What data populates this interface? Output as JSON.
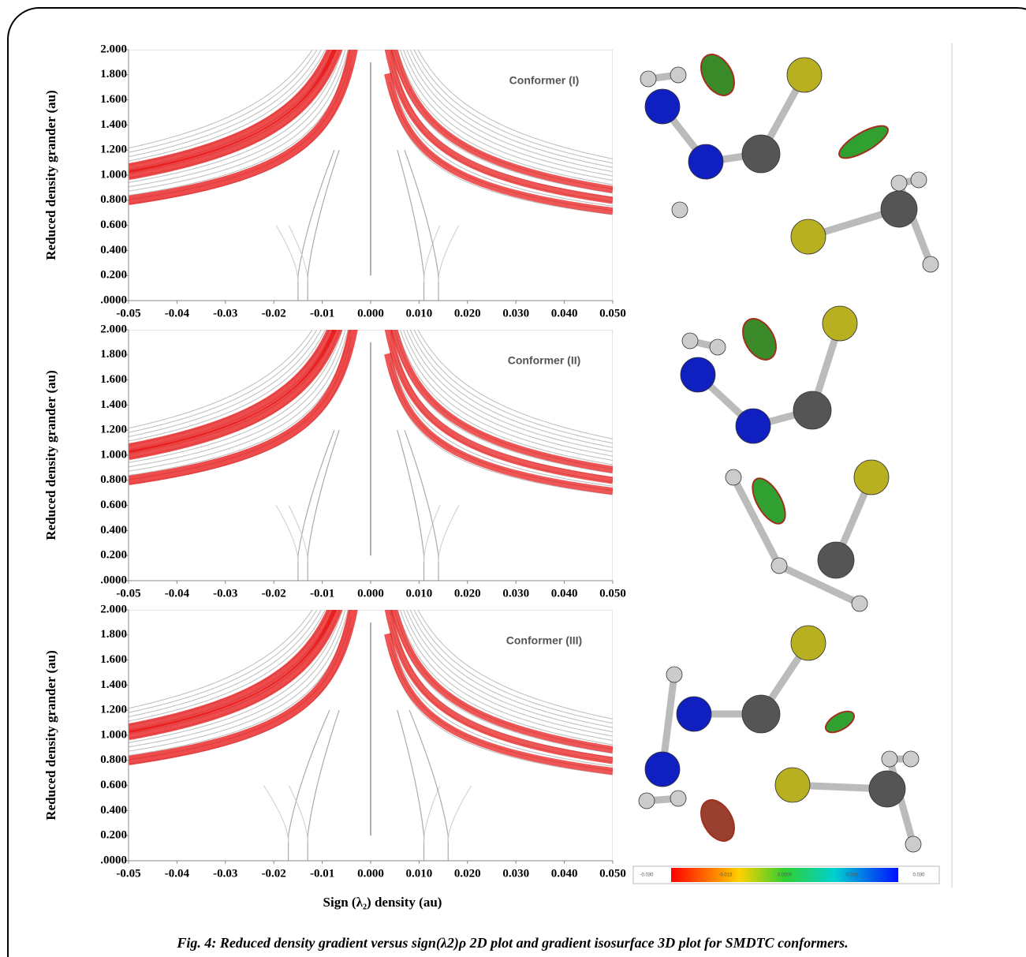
{
  "figure": {
    "panels": [
      {
        "title": "Conformer (I)",
        "ylabel": "Reduced density grander (au)",
        "xlim": [
          -0.05,
          0.05
        ],
        "ylim": [
          0,
          2
        ],
        "xticks": [
          -0.05,
          -0.04,
          -0.03,
          -0.02,
          -0.01,
          {
            "value": 0,
            "label": "0.000"
          },
          {
            "value": 0.01,
            "label": "0.010"
          },
          {
            "value": 0.02,
            "label": "0.020"
          },
          {
            "value": 0.03,
            "label": "0.030"
          },
          {
            "value": 0.04,
            "label": "0.040"
          },
          {
            "value": 0.05,
            "label": "0.050"
          }
        ],
        "yticks": [
          {
            "value": 0,
            "label": ".0000"
          },
          {
            "value": 0.2,
            "label": "0.200"
          },
          {
            "value": 0.4,
            "label": "0.400"
          },
          {
            "value": 0.6,
            "label": "0.600"
          },
          {
            "value": 0.8,
            "label": "0.800"
          },
          {
            "value": 1,
            "label": "1.000"
          },
          {
            "value": 1.2,
            "label": "1.200"
          },
          {
            "value": 1.4,
            "label": "1.400"
          },
          {
            "value": 1.6,
            "label": "1.600"
          },
          {
            "value": 1.8,
            "label": "1.800"
          },
          {
            "value": 2,
            "label": "2.000"
          }
        ]
      },
      {
        "title": "Conformer (II)",
        "ylabel": "Reduced density grander (au)",
        "xlim": [
          -0.05,
          0.05
        ],
        "ylim": [
          0,
          2
        ],
        "xticks": [
          -0.05,
          -0.04,
          -0.03,
          -0.02,
          -0.01,
          {
            "value": 0,
            "label": "0.000"
          },
          {
            "value": 0.01,
            "label": "0.010"
          },
          {
            "value": 0.02,
            "label": "0.020"
          },
          {
            "value": 0.03,
            "label": "0.030"
          },
          {
            "value": 0.04,
            "label": "0.040"
          },
          {
            "value": 0.05,
            "label": "0.050"
          }
        ],
        "yticks": [
          {
            "value": 0,
            "label": ".0000"
          },
          {
            "value": 0.2,
            "label": "0.200"
          },
          {
            "value": 0.4,
            "label": "0.400"
          },
          {
            "value": 0.6,
            "label": "0.600"
          },
          {
            "value": 0.8,
            "label": "0.800"
          },
          {
            "value": 1,
            "label": "1.000"
          },
          {
            "value": 1.2,
            "label": "1.200"
          },
          {
            "value": 1.4,
            "label": "1.400"
          },
          {
            "value": 1.6,
            "label": "1.600"
          },
          {
            "value": 1.8,
            "label": "1.800"
          },
          {
            "value": 2,
            "label": "2.000"
          }
        ]
      },
      {
        "title": "Conformer (III)",
        "ylabel": "Reduced density grander (au)",
        "xlim": [
          -0.05,
          0.05
        ],
        "ylim": [
          0,
          2
        ],
        "xticks": [
          -0.05,
          -0.04,
          -0.03,
          -0.02,
          -0.01,
          {
            "value": 0,
            "label": "0.000"
          },
          {
            "value": 0.01,
            "label": "0.010"
          },
          {
            "value": 0.02,
            "label": "0.020"
          },
          {
            "value": 0.03,
            "label": "0.030"
          },
          {
            "value": 0.04,
            "label": "0.040"
          },
          {
            "value": 0.05,
            "label": "0.050"
          }
        ],
        "yticks": [
          {
            "value": 0,
            "label": ".0000"
          },
          {
            "value": 0.2,
            "label": "0.200"
          },
          {
            "value": 0.4,
            "label": "0.400"
          },
          {
            "value": 0.6,
            "label": "0.600"
          },
          {
            "value": 0.8,
            "label": "0.800"
          },
          {
            "value": 1,
            "label": "1.000"
          },
          {
            "value": 1.2,
            "label": "1.200"
          },
          {
            "value": 1.4,
            "label": "1.400"
          },
          {
            "value": 1.6,
            "label": "1.600"
          },
          {
            "value": 1.8,
            "label": "1.800"
          },
          {
            "value": 2,
            "label": "2.000"
          }
        ]
      }
    ],
    "xlabel": "Sign (λ₂) density (au)",
    "colorbar": [
      "-0.030",
      "-0.015",
      "0.0000",
      "0.015",
      "0.030"
    ],
    "caption": "Fig. 4: Reduced density gradient versus sign(λ2)ρ 2D plot and gradient isosurface 3D plot for SMDTC conformers."
  }
}
